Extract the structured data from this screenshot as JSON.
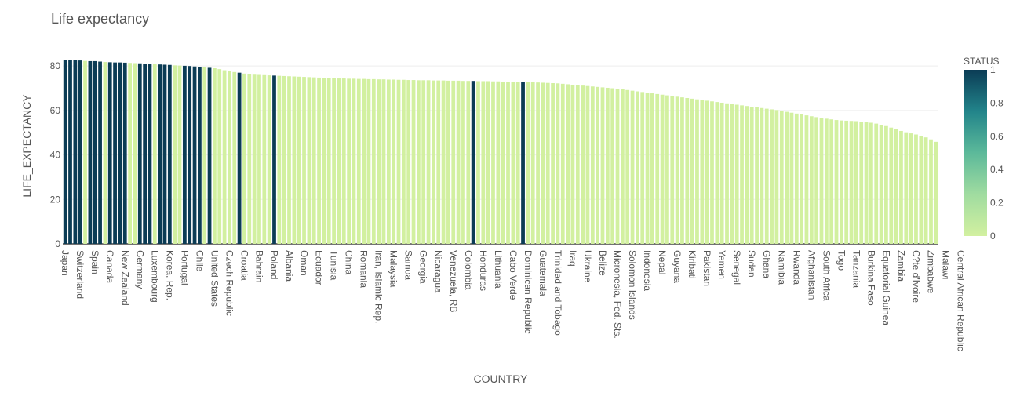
{
  "chart_data": {
    "type": "bar",
    "title": "Life expectancy",
    "xlabel": "COUNTRY",
    "ylabel": "LIFE_EXPECTANCY",
    "ylim": [
      0,
      85
    ],
    "yticks": [
      0,
      20,
      40,
      60,
      80
    ],
    "grid": true,
    "legend": "colorbar-right",
    "colorbar": {
      "title": "STATUS",
      "range": [
        0,
        1
      ],
      "ticks": [
        "0",
        "0.2",
        "0.4",
        "0.6",
        "0.8",
        "1"
      ],
      "color_low": "#d2f0a0",
      "color_high": "#0b3c55"
    },
    "tick_labels": [
      "Japan",
      "Switzerland",
      "Spain",
      "Canada",
      "New Zealand",
      "Germany",
      "Luxembourg",
      "Korea, Rep.",
      "Portugal",
      "Chile",
      "United States",
      "Czech Republic",
      "Croatia",
      "Bahrain",
      "Poland",
      "Albania",
      "Oman",
      "Ecuador",
      "Tunisia",
      "China",
      "Romania",
      "Iran, Islamic Rep.",
      "Malaysia",
      "Samoa",
      "Georgia",
      "Nicaragua",
      "Venezuela, RB",
      "Colombia",
      "Honduras",
      "Lithuania",
      "Cabo Verde",
      "Dominican Republic",
      "Guatemala",
      "Trinidad and Tobago",
      "Iraq",
      "Ukraine",
      "Belize",
      "Micronesia, Fed. Sts.",
      "Solomon Islands",
      "Indonesia",
      "Nepal",
      "Guyana",
      "Kiribati",
      "Pakistan",
      "Yemen",
      "Senegal",
      "Sudan",
      "Ghana",
      "Namibia",
      "Rwanda",
      "Afghanistan",
      "South Africa",
      "Togo",
      "Tanzania",
      "Burkina Faso",
      "Equatorial Guinea",
      "Zambia",
      "C?te d'Ivoire",
      "Zimbabwe",
      "Malawi",
      "Central African Republic"
    ],
    "values": [
      82.7,
      82.6,
      82.6,
      82.5,
      82.3,
      82.2,
      82.2,
      82.0,
      81.8,
      81.7,
      81.6,
      81.6,
      81.5,
      81.4,
      81.3,
      81.2,
      81.1,
      80.9,
      80.8,
      80.7,
      80.6,
      80.5,
      80.3,
      80.2,
      80.1,
      80.0,
      79.8,
      79.6,
      79.4,
      79.2,
      79.0,
      78.6,
      78.1,
      77.7,
      77.3,
      77.0,
      76.6,
      76.3,
      76.1,
      76.0,
      75.9,
      75.8,
      75.7,
      75.6,
      75.5,
      75.4,
      75.3,
      75.2,
      75.1,
      75.0,
      74.9,
      74.8,
      74.7,
      74.6,
      74.5,
      74.4,
      74.4,
      74.3,
      74.3,
      74.2,
      74.2,
      74.1,
      74.1,
      74.0,
      74.0,
      73.9,
      73.9,
      73.8,
      73.8,
      73.7,
      73.7,
      73.6,
      73.6,
      73.6,
      73.5,
      73.5,
      73.5,
      73.4,
      73.4,
      73.4,
      73.3,
      73.3,
      73.3,
      73.2,
      73.2,
      73.2,
      73.1,
      73.1,
      73.0,
      73.0,
      72.9,
      72.9,
      72.8,
      72.8,
      72.7,
      72.6,
      72.5,
      72.4,
      72.3,
      72.2,
      72.0,
      71.8,
      71.6,
      71.4,
      71.2,
      71.0,
      70.8,
      70.6,
      70.4,
      70.2,
      70.0,
      69.8,
      69.5,
      69.2,
      68.9,
      68.6,
      68.3,
      68.0,
      67.7,
      67.4,
      67.1,
      66.8,
      66.5,
      66.2,
      65.9,
      65.6,
      65.3,
      65.0,
      64.7,
      64.4,
      64.1,
      63.8,
      63.5,
      63.2,
      62.9,
      62.6,
      62.3,
      62.0,
      61.7,
      61.4,
      61.1,
      60.8,
      60.5,
      60.2,
      59.8,
      59.4,
      59.0,
      58.6,
      58.2,
      57.8,
      57.4,
      57.0,
      56.6,
      56.3,
      56.0,
      55.7,
      55.5,
      55.4,
      55.3,
      55.2,
      55.0,
      54.8,
      54.5,
      54.1,
      53.6,
      53.0,
      52.3,
      51.5,
      50.8,
      50.2,
      49.7,
      49.2,
      48.6,
      47.9,
      47.0,
      45.9
    ],
    "status": [
      1,
      1,
      1,
      1,
      0,
      1,
      1,
      1,
      0,
      1,
      1,
      1,
      1,
      0,
      0,
      1,
      1,
      1,
      0,
      1,
      1,
      1,
      0,
      0,
      1,
      1,
      1,
      1,
      0,
      1,
      0,
      0,
      0,
      0,
      0,
      1,
      0,
      0,
      0,
      0,
      0,
      0,
      1,
      0,
      0,
      0,
      0,
      0,
      0,
      0,
      0,
      0,
      0,
      0,
      0,
      0,
      0,
      0,
      0,
      0,
      0,
      0,
      0,
      0,
      0,
      0,
      0,
      0,
      0,
      0,
      0,
      0,
      0,
      0,
      0,
      0,
      0,
      0,
      0,
      0,
      0,
      0,
      1,
      0,
      0,
      0,
      0,
      0,
      0,
      0,
      0,
      0,
      1,
      0,
      0,
      0,
      0,
      0,
      0,
      0,
      0,
      0,
      0,
      0,
      0,
      0,
      0,
      0,
      0,
      0,
      0,
      0,
      0,
      0,
      0,
      0,
      0,
      0,
      0,
      0,
      0,
      0,
      0,
      0,
      0,
      0,
      0,
      0,
      0,
      0,
      0,
      0,
      0,
      0,
      0,
      0,
      0,
      0,
      0,
      0,
      0,
      0,
      0,
      0,
      0,
      0,
      0,
      0,
      0,
      0,
      0,
      0,
      0,
      0,
      0,
      0,
      0,
      0,
      0,
      0,
      0,
      0,
      0,
      0,
      0,
      0,
      0,
      0,
      0,
      0,
      0,
      0,
      0,
      0,
      0,
      0,
      0,
      0,
      0,
      0,
      0,
      0,
      0
    ]
  }
}
